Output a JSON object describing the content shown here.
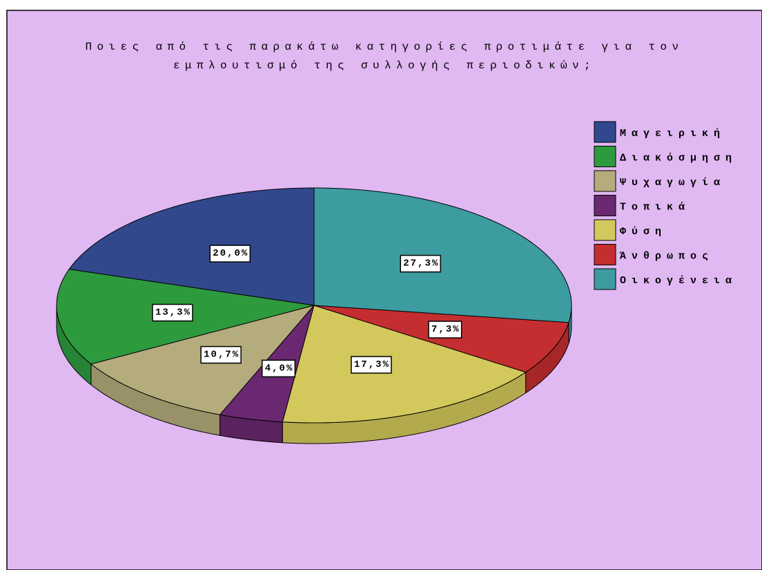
{
  "chart_data": {
    "type": "pie3d",
    "title": [
      "Ποιες από τις παρακάτω κατηγορίες προτιμάτε για τον",
      "εμπλουτισμό της συλλογής περιοδικών;"
    ],
    "categories": [
      "Μαγειρική",
      "Διακόσμηση",
      "Ψυχαγωγία",
      "Τοπικά",
      "Φύση",
      "Άνθρωπος",
      "Οικογένεια"
    ],
    "values": [
      20.0,
      13.3,
      10.7,
      4.0,
      17.3,
      7.3,
      27.3
    ],
    "value_labels": [
      "20,0%",
      "13,3%",
      "10,7%",
      "4,0%",
      "17,3%",
      "7,3%",
      "27,3%"
    ],
    "colors": [
      "#32488c",
      "#2e9a3e",
      "#b4ac7c",
      "#6a2870",
      "#d2c85c",
      "#c42e30",
      "#3d9ca0"
    ],
    "legend": "right"
  }
}
